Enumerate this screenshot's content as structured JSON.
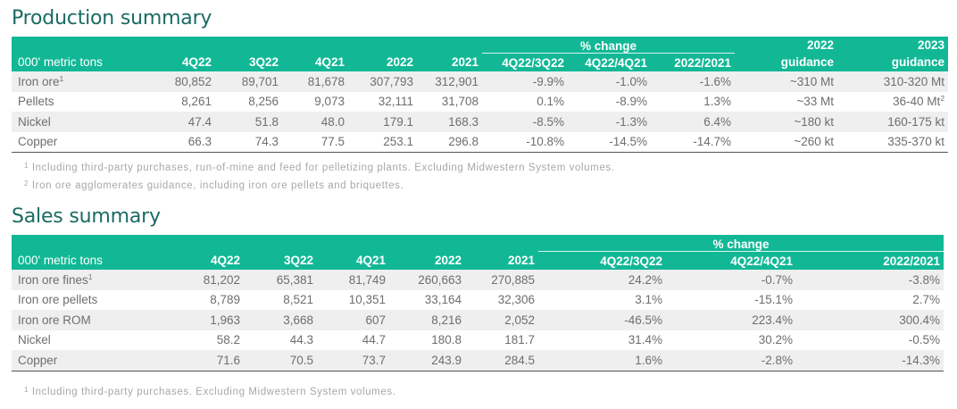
{
  "production": {
    "title": "Production summary",
    "unit_label": "000' metric tons",
    "group_label": "% change",
    "columns": [
      "4Q22",
      "3Q22",
      "4Q21",
      "2022",
      "2021",
      "4Q22/3Q22",
      "4Q22/4Q21",
      "2022/2021"
    ],
    "guidance_2022": {
      "line1": "2022",
      "line2": "guidance"
    },
    "guidance_2023": {
      "line1": "2023",
      "line2": "guidance"
    },
    "rows": [
      {
        "label": "Iron ore",
        "sup": "1",
        "values": [
          "80,852",
          "89,701",
          "81,678",
          "307,793",
          "312,901",
          "-9.9%",
          "-1.0%",
          "-1.6%",
          "~310 Mt"
        ],
        "g2023": "310-320 Mt",
        "g2023_sup": ""
      },
      {
        "label": "Pellets",
        "sup": "",
        "values": [
          "8,261",
          "8,256",
          "9,073",
          "32,111",
          "31,708",
          "0.1%",
          "-8.9%",
          "1.3%",
          "~33 Mt"
        ],
        "g2023": "36-40 Mt",
        "g2023_sup": "2"
      },
      {
        "label": "Nickel",
        "sup": "",
        "values": [
          "47.4",
          "51.8",
          "48.0",
          "179.1",
          "168.3",
          "-8.5%",
          "-1.3%",
          "6.4%",
          "~180 kt"
        ],
        "g2023": "160-175 kt",
        "g2023_sup": ""
      },
      {
        "label": "Copper",
        "sup": "",
        "values": [
          "66.3",
          "74.3",
          "77.5",
          "253.1",
          "296.8",
          "-10.8%",
          "-14.5%",
          "-14.7%",
          "~260 kt"
        ],
        "g2023": "335-370 kt",
        "g2023_sup": ""
      }
    ],
    "footnotes": [
      {
        "mark": "1",
        "text": "Including third-party purchases, run-of-mine and feed for pelletizing plants. Excluding Midwestern System volumes."
      },
      {
        "mark": "2",
        "text": "Iron ore agglomerates guidance, including iron ore pellets and briquettes."
      }
    ]
  },
  "sales": {
    "title": "Sales summary",
    "unit_label": "000' metric tons",
    "group_label": "% change",
    "columns": [
      "4Q22",
      "3Q22",
      "4Q21",
      "2022",
      "2021",
      "4Q22/3Q22",
      "4Q22/4Q21",
      "2022/2021"
    ],
    "rows": [
      {
        "label": "Iron ore fines",
        "sup": "1",
        "values": [
          "81,202",
          "65,381",
          "81,749",
          "260,663",
          "270,885",
          "24.2%",
          "-0.7%",
          "-3.8%"
        ]
      },
      {
        "label": "Iron ore pellets",
        "sup": "",
        "values": [
          "8,789",
          "8,521",
          "10,351",
          "33,164",
          "32,306",
          "3.1%",
          "-15.1%",
          "2.7%"
        ]
      },
      {
        "label": "Iron ore ROM",
        "sup": "",
        "values": [
          "1,963",
          "3,668",
          "607",
          "8,216",
          "2,052",
          "-46.5%",
          "223.4%",
          "300.4%"
        ]
      },
      {
        "label": "Nickel",
        "sup": "",
        "values": [
          "58.2",
          "44.3",
          "44.7",
          "180.8",
          "181.7",
          "31.4%",
          "30.2%",
          "-0.5%"
        ]
      },
      {
        "label": "Copper",
        "sup": "",
        "values": [
          "71.6",
          "70.5",
          "73.7",
          "243.9",
          "284.5",
          "1.6%",
          "-2.8%",
          "-14.3%"
        ]
      }
    ],
    "footnotes": [
      {
        "mark": "1",
        "text": "Including third-party purchases. Excluding Midwestern System volumes."
      }
    ]
  },
  "colors": {
    "header_bg": "#12b896",
    "title": "#1b6b63",
    "stripe": "#efefef",
    "text": "#6e6e6e",
    "footnote": "#a8a8a8"
  }
}
